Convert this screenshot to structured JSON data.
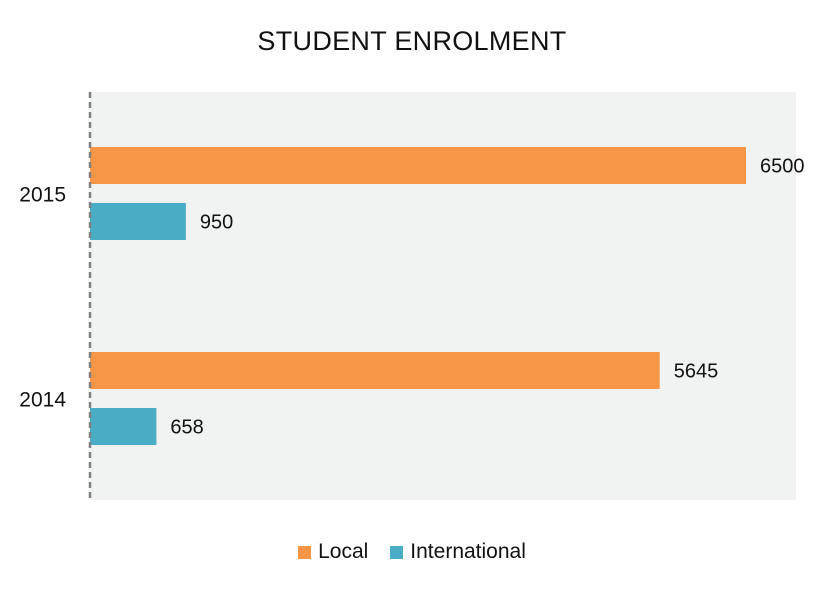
{
  "chart_data": {
    "type": "bar",
    "orientation": "horizontal",
    "title": "STUDENT ENROLMENT",
    "categories": [
      "2015",
      "2014"
    ],
    "series": [
      {
        "name": "Local",
        "values": [
          6500,
          5645
        ],
        "color": "#F79646"
      },
      {
        "name": "International",
        "values": [
          950,
          658
        ],
        "color": "#4BACC6"
      }
    ],
    "xlim": [
      0,
      7100
    ],
    "grid": false,
    "legend": "bottom",
    "plot_background": "#F1F2F2",
    "axis_style": "dashed"
  }
}
